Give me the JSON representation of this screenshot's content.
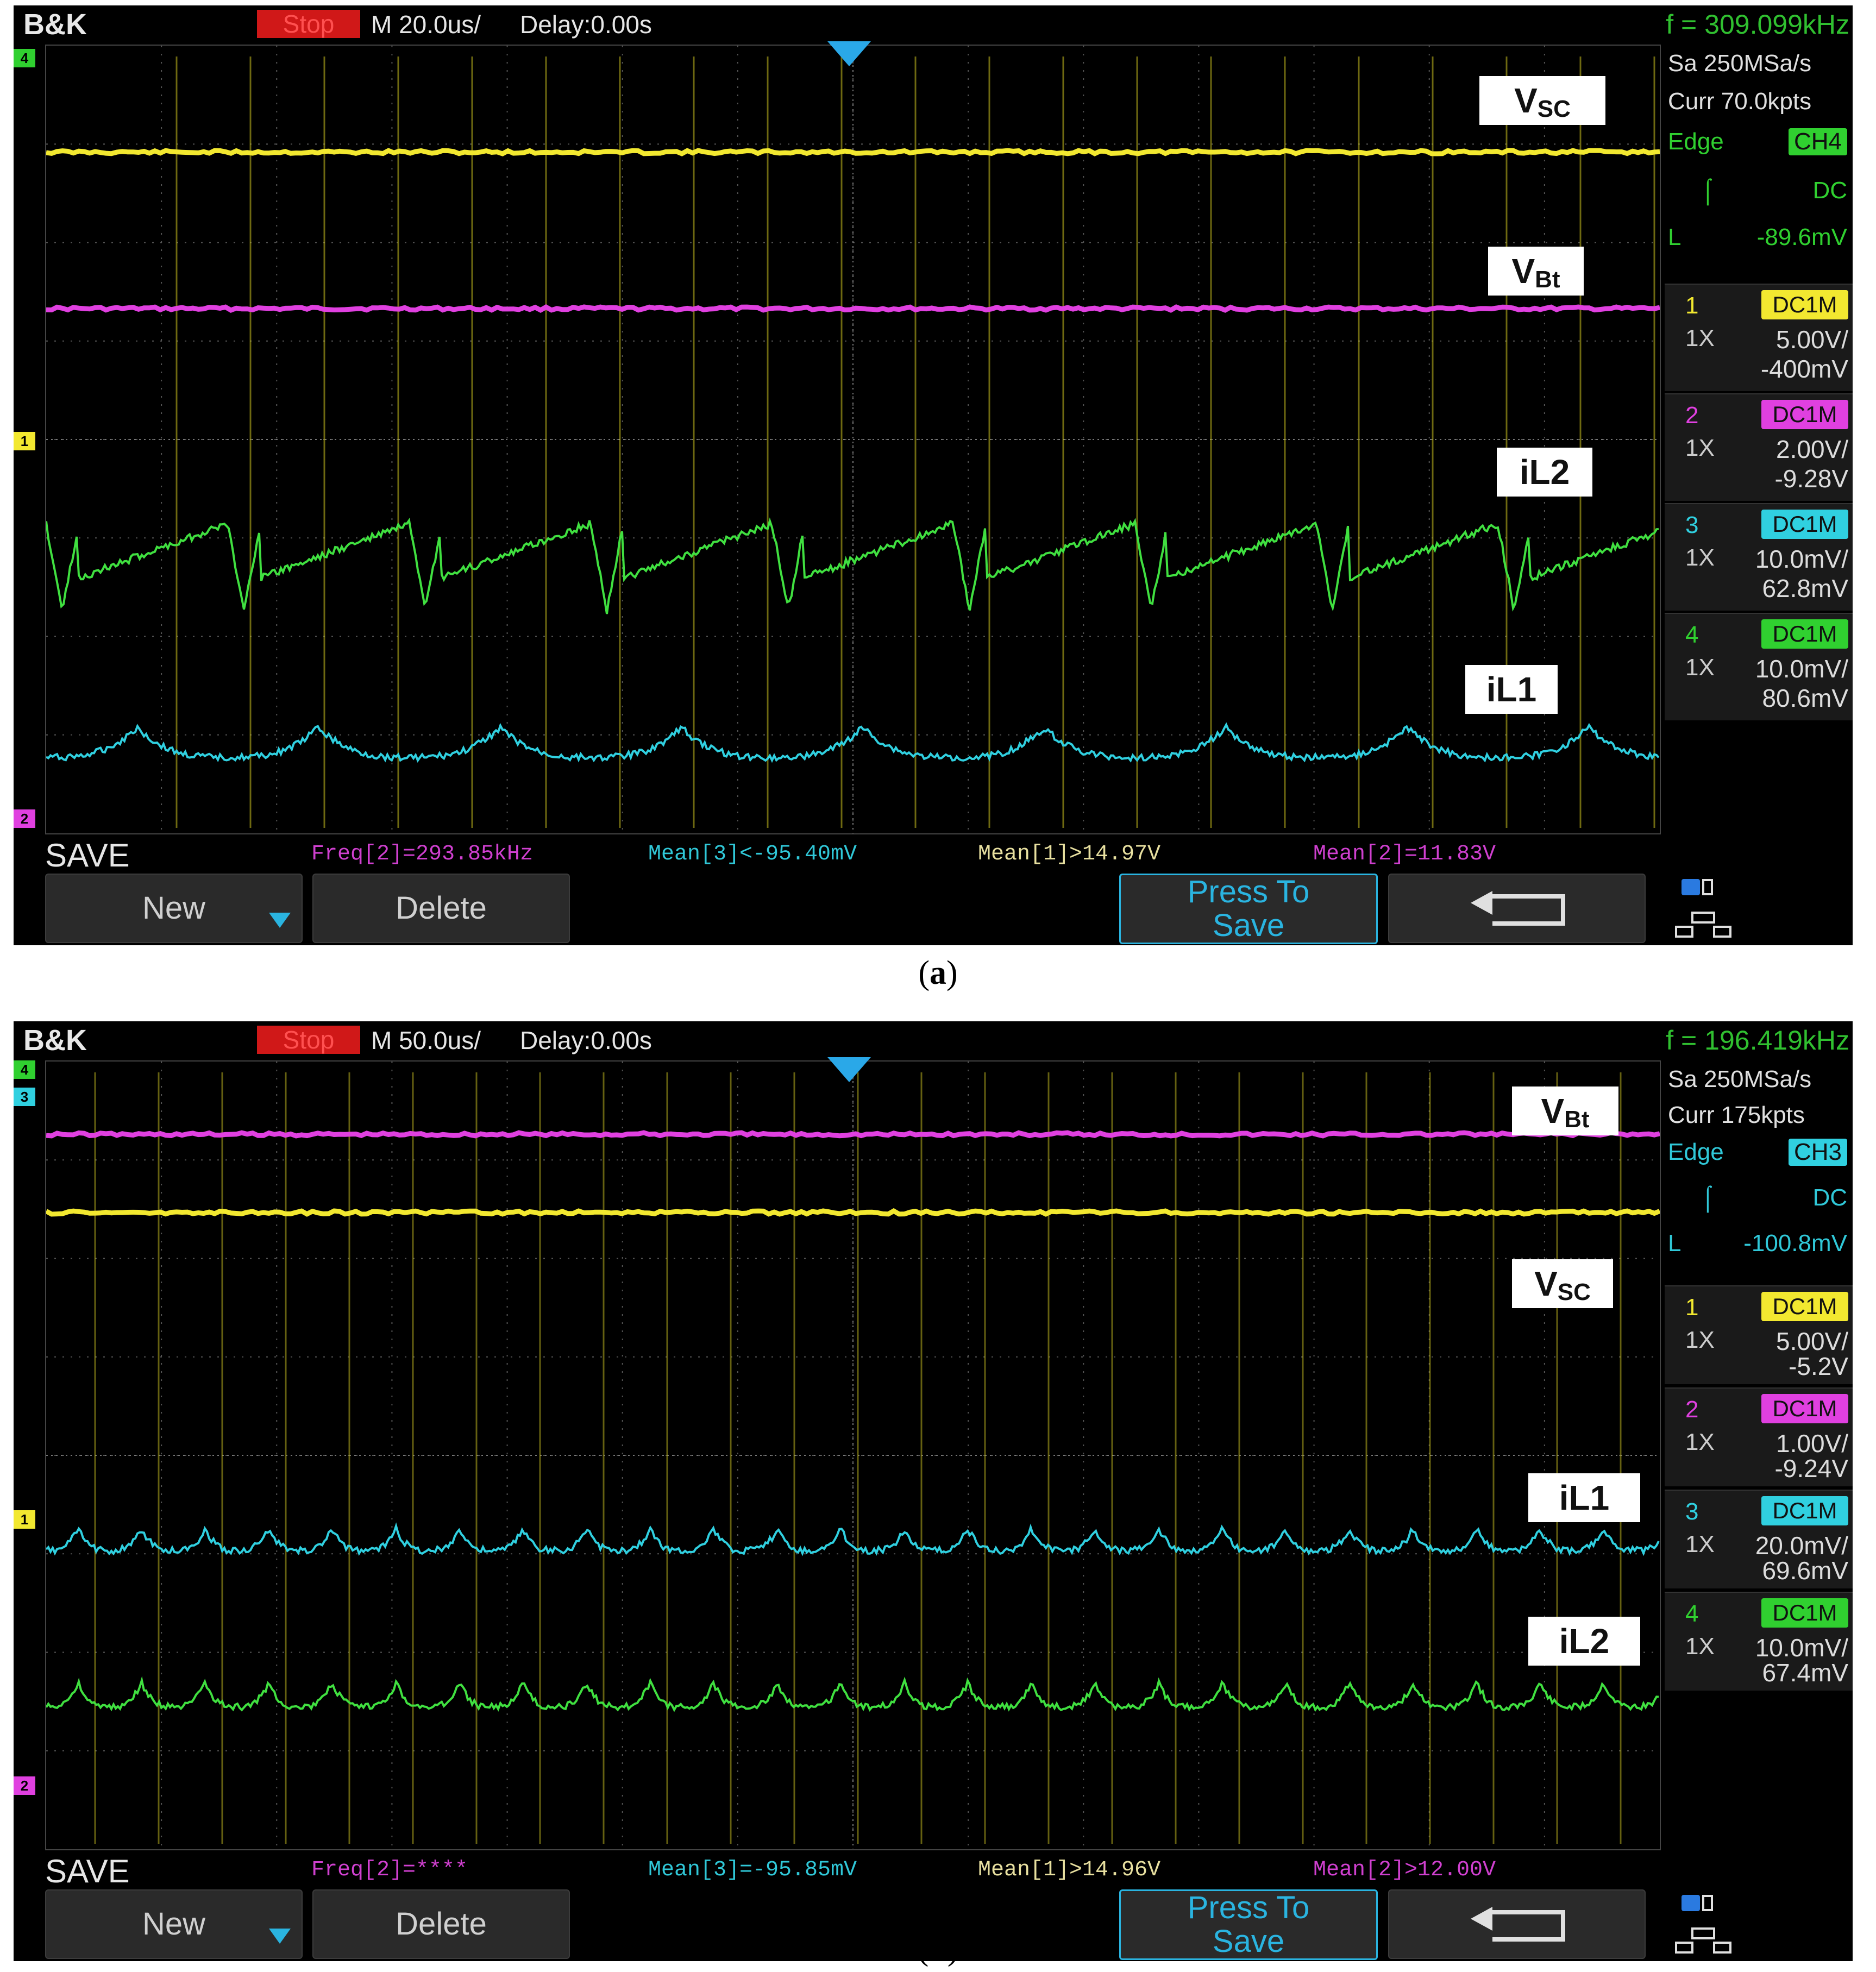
{
  "panels": [
    {
      "id": "a",
      "caption_letter": "a",
      "brand": "B&K",
      "run_state": "Stop",
      "timebase": "M 20.0us/",
      "delay": "Delay:0.00s",
      "frequency": "f = 309.099kHz",
      "sample_rate": "Sa 250MSa/s",
      "memory": "Curr 70.0kpts",
      "trigger": {
        "type": "Edge",
        "source": "CH4",
        "coupling": "DC",
        "level_label": "L",
        "level": "-89.6mV"
      },
      "channels": [
        {
          "num": "1",
          "coupling": "DC1M",
          "probe": "1X",
          "scale": "5.00V/",
          "offset": "-400mV",
          "color": "#f2e830"
        },
        {
          "num": "2",
          "coupling": "DC1M",
          "probe": "1X",
          "scale": "2.00V/",
          "offset": "-9.28V",
          "color": "#e040e0"
        },
        {
          "num": "3",
          "coupling": "DC1M",
          "probe": "1X",
          "scale": "10.0mV/",
          "offset": "62.8mV",
          "color": "#30d0e0"
        },
        {
          "num": "4",
          "coupling": "DC1M",
          "probe": "1X",
          "scale": "10.0mV/",
          "offset": "80.6mV",
          "color": "#30d030"
        }
      ],
      "trace_labels": {
        "vsc_main": "V",
        "vsc_sub": "SC",
        "vbt_main": "V",
        "vbt_sub": "Bt",
        "il2": "iL2",
        "il1": "iL1"
      },
      "save_label": "SAVE",
      "measurements": [
        {
          "text": "Freq[2]=293.85kHz",
          "color": "#d040d0"
        },
        {
          "text": "Mean[3]<-95.40mV",
          "color": "#30c8d8"
        },
        {
          "text": "Mean[1]>14.97V",
          "color": "#e8e0a0"
        },
        {
          "text": "Mean[2]=11.83V",
          "color": "#d040d0"
        }
      ],
      "buttons": {
        "new": "New",
        "delete": "Delete",
        "press_to": "Press To",
        "save": "Save"
      }
    },
    {
      "id": "b",
      "caption_letter": "b",
      "brand": "B&K",
      "run_state": "Stop",
      "timebase": "M 50.0us/",
      "delay": "Delay:0.00s",
      "frequency": "f = 196.419kHz",
      "sample_rate": "Sa 250MSa/s",
      "memory": "Curr 175kpts",
      "trigger": {
        "type": "Edge",
        "source": "CH3",
        "coupling": "DC",
        "level_label": "L",
        "level": "-100.8mV"
      },
      "channels": [
        {
          "num": "1",
          "coupling": "DC1M",
          "probe": "1X",
          "scale": "5.00V/",
          "offset": "-5.2V",
          "color": "#f2e830"
        },
        {
          "num": "2",
          "coupling": "DC1M",
          "probe": "1X",
          "scale": "1.00V/",
          "offset": "-9.24V",
          "color": "#e040e0"
        },
        {
          "num": "3",
          "coupling": "DC1M",
          "probe": "1X",
          "scale": "20.0mV/",
          "offset": "69.6mV",
          "color": "#30d0e0"
        },
        {
          "num": "4",
          "coupling": "DC1M",
          "probe": "1X",
          "scale": "10.0mV/",
          "offset": "67.4mV",
          "color": "#30d030"
        }
      ],
      "trace_labels": {
        "vbt_main": "V",
        "vbt_sub": "Bt",
        "vsc_main": "V",
        "vsc_sub": "SC",
        "il1": "iL1",
        "il2": "iL2"
      },
      "save_label": "SAVE",
      "measurements": [
        {
          "text": "Freq[2]=****",
          "color": "#d040d0"
        },
        {
          "text": "Mean[3]=-95.85mV",
          "color": "#30c8d8"
        },
        {
          "text": "Mean[1]>14.96V",
          "color": "#e8e0a0"
        },
        {
          "text": "Mean[2]>12.00V",
          "color": "#d040d0"
        }
      ],
      "buttons": {
        "new": "New",
        "delete": "Delete",
        "press_to": "Press To",
        "save": "Save"
      }
    }
  ]
}
